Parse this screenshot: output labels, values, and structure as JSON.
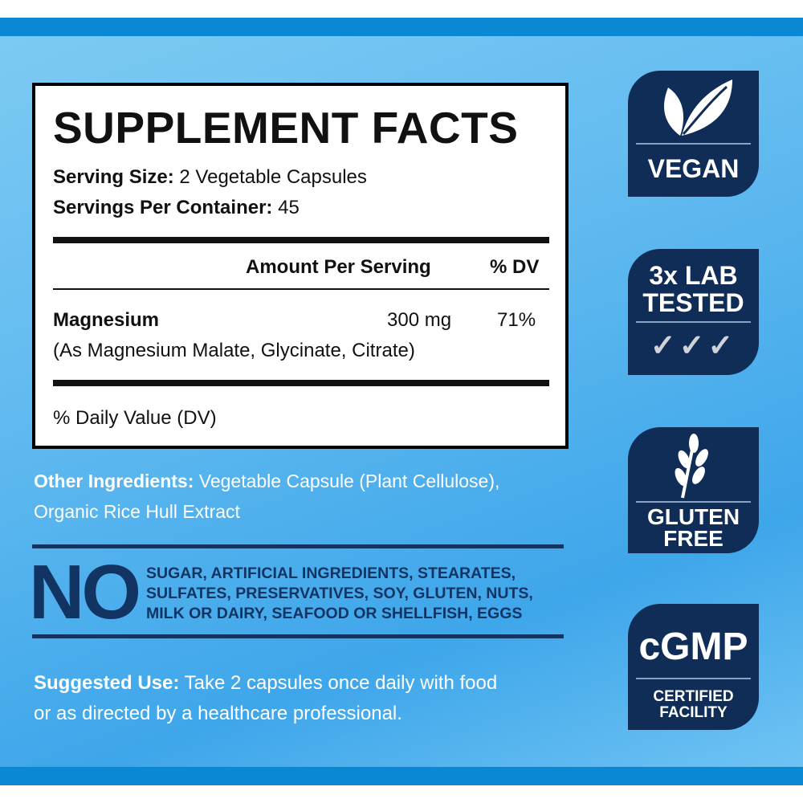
{
  "facts": {
    "title": "SUPPLEMENT FACTS",
    "serving_size_label": "Serving Size:",
    "serving_size": "2 Vegetable Capsules",
    "servings_label": "Servings Per Container:",
    "servings": "45",
    "col_amount": "Amount Per Serving",
    "col_dv": "% DV",
    "nutrient": "Magnesium",
    "nutrient_detail": "(As Magnesium Malate, Glycinate, Citrate)",
    "amount": "300 mg",
    "dv": "71%",
    "footnote": "% Daily Value (DV)"
  },
  "other": {
    "label": "Other Ingredients:",
    "text": "Vegetable Capsule (Plant Cellulose),",
    "text2": "Organic Rice Hull Extract"
  },
  "no": {
    "big": "NO",
    "line1": "SUGAR, ARTIFICIAL INGREDIENTS, STEARATES,",
    "line2": "SULFATES, PRESERVATIVES, SOY, GLUTEN, NUTS,",
    "line3": "MILK OR DAIRY, SEAFOOD OR SHELLFISH, EGGS"
  },
  "use": {
    "label": "Suggested Use:",
    "text": "Take 2 capsules once daily with food",
    "text2": "or as directed by a healthcare professional."
  },
  "badges": {
    "vegan": "VEGAN",
    "lab1": "3x LAB",
    "lab2": "TESTED",
    "checks": "✓✓✓",
    "gluten1": "GLUTEN",
    "gluten2": "FREE",
    "cgmp": "cGMP",
    "cert1": "CERTIFIED",
    "cert2": "FACILITY"
  },
  "colors": {
    "accent": "#0a88d4",
    "badge": "#0f2d57",
    "no_text": "#123463"
  }
}
